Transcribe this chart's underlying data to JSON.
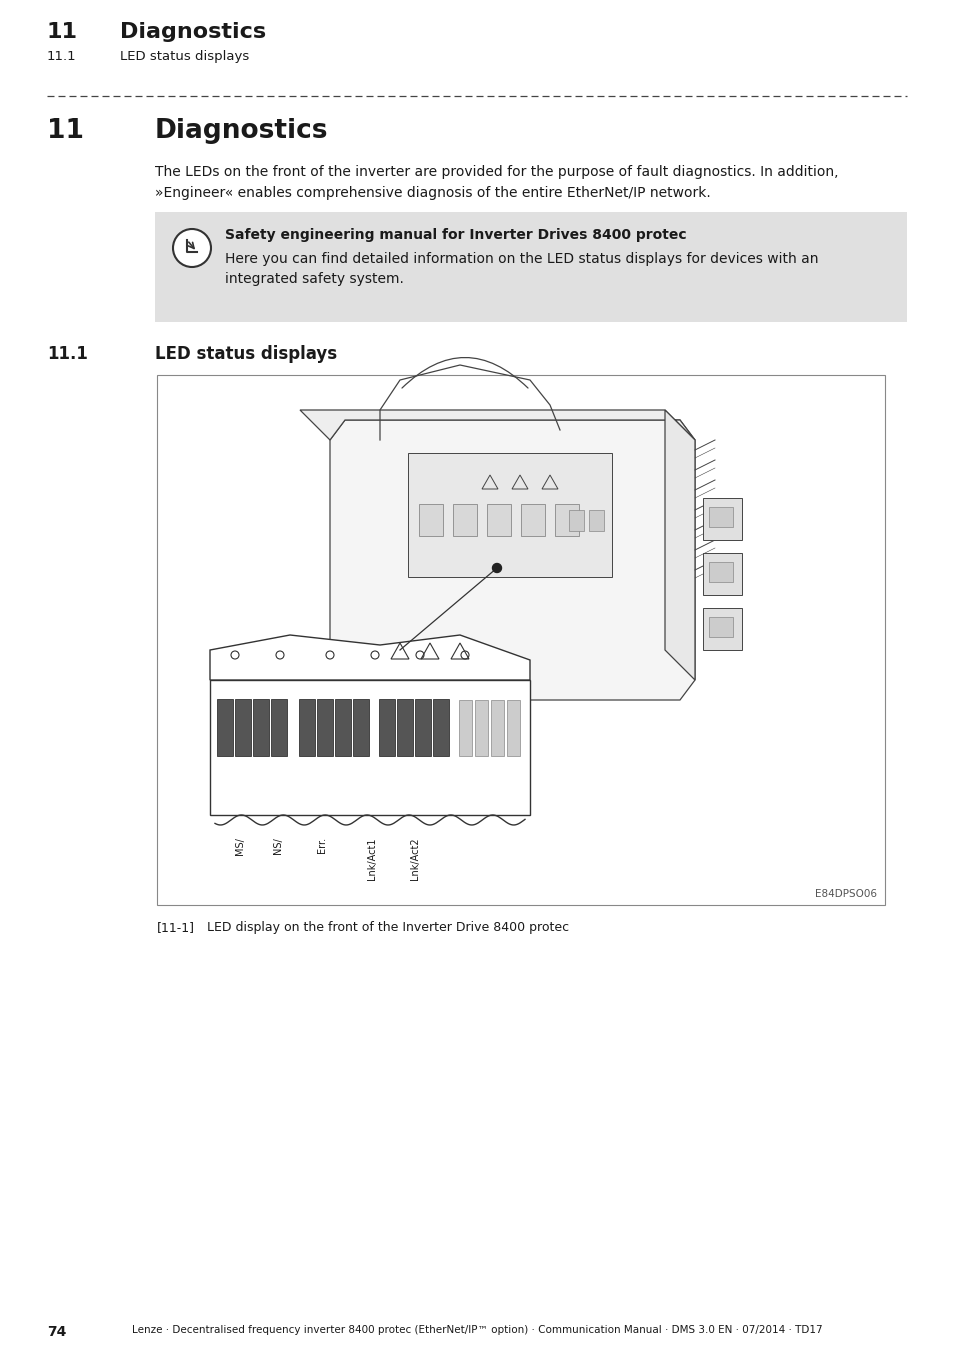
{
  "page_bg": "#ffffff",
  "header_num": "11",
  "header_title": "Diagnostics",
  "header_sub_num": "11.1",
  "header_sub_title": "LED status displays",
  "section_num": "11",
  "section_title": "Diagnostics",
  "body_text_line1": "The LEDs on the front of the inverter are provided for the purpose of fault diagnostics. In addition,",
  "body_text_line2": "»Engineer« enables comprehensive diagnosis of the entire EtherNet/IP network.",
  "note_bg": "#e0e0e0",
  "note_bold": "Safety engineering manual for Inverter Drives 8400 protec",
  "note_line1": "Here you can find detailed information on the LED status displays for devices with an",
  "note_line2": "integrated safety system.",
  "subsection_num": "11.1",
  "subsection_title": "LED status displays",
  "caption_bracket": "[11-1]",
  "caption_text": "LED display on the front of the Inverter Drive 8400 protec",
  "fig_label": "E84DPSO06",
  "footer_page": "74",
  "footer_text": "Lenze · Decentralised frequency inverter 8400 protec (EtherNet/IP™ option) · Communication Manual · DMS 3.0 EN · 07/2014 · TD17",
  "text_color": "#1a1a1a"
}
